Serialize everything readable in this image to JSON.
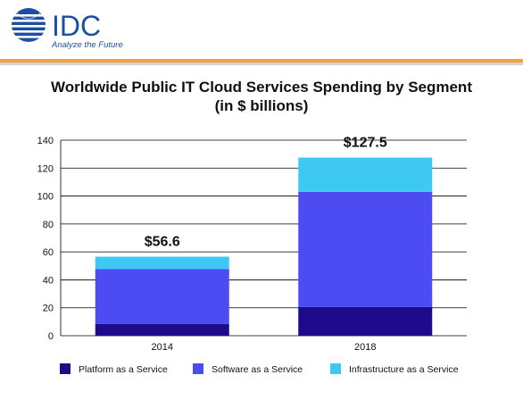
{
  "brand": {
    "name": "IDC",
    "tagline": "Analyze the Future"
  },
  "colors": {
    "brand_blue": "#1a4fa3",
    "accent_orange": "#f2a43a",
    "paas": "#1f0a8c",
    "saas": "#4d4cf2",
    "iaas": "#3ec9f5"
  },
  "chart_data": {
    "type": "bar",
    "stacked": true,
    "title": "Worldwide Public IT Cloud Services Spending by Segment",
    "subtitle": "(in $ billions)",
    "categories": [
      "2014",
      "2018"
    ],
    "series": [
      {
        "name": "Platform as a Service",
        "values": [
          8.5,
          20.5
        ]
      },
      {
        "name": "Software as a Service",
        "values": [
          39.3,
          82.5
        ]
      },
      {
        "name": "Infrastructure as a Service",
        "values": [
          8.8,
          24.5
        ]
      }
    ],
    "totals": [
      "$56.6",
      "$127.5"
    ],
    "ylim": [
      0,
      140
    ],
    "yticks": [
      0,
      20,
      40,
      60,
      80,
      100,
      120,
      140
    ],
    "grid": true,
    "legend": "bottom"
  }
}
